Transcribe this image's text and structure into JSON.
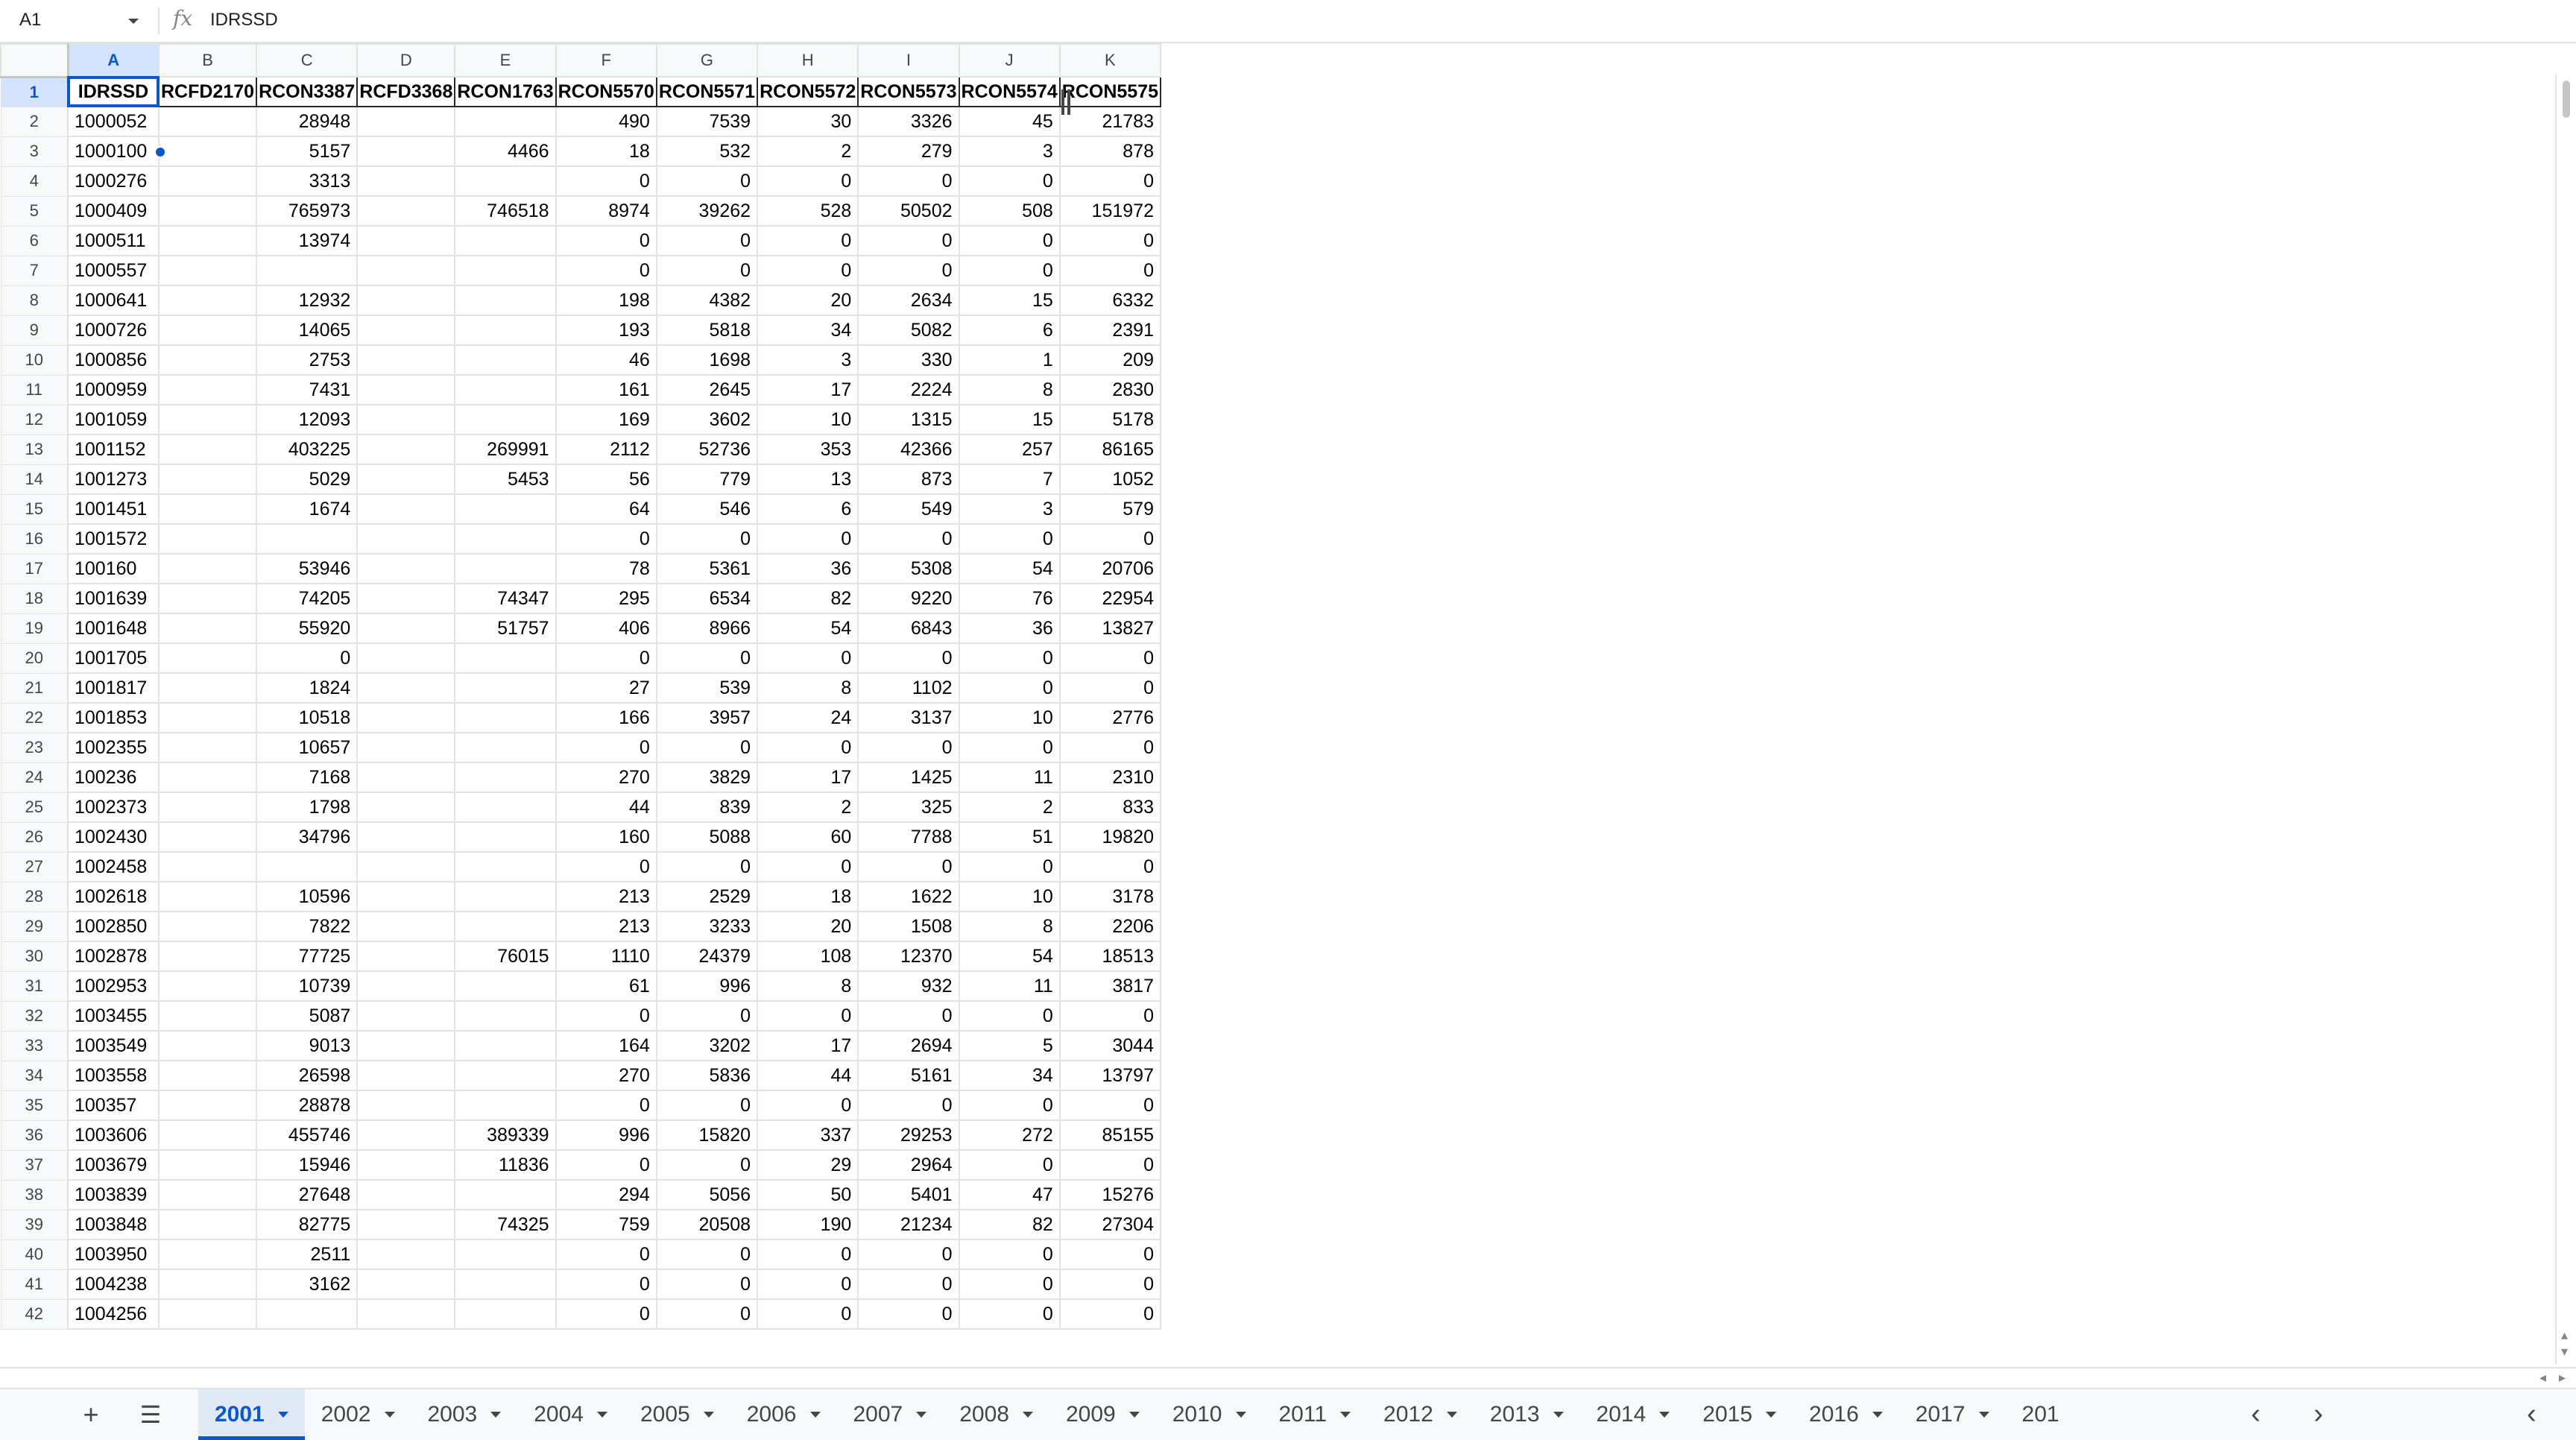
{
  "formula_bar": {
    "name_box": "A1",
    "fx_symbol": "fx",
    "formula_value": "IDRSSD"
  },
  "columns": [
    "A",
    "B",
    "C",
    "D",
    "E",
    "F",
    "G",
    "H",
    "I",
    "J",
    "K"
  ],
  "header_row": [
    "IDRSSD",
    "RCFD2170",
    "RCON3387",
    "RCFD3368",
    "RCON1763",
    "RCON5570",
    "RCON5571",
    "RCON5572",
    "RCON5573",
    "RCON5574",
    "RCON5575"
  ],
  "rows": [
    [
      "1000052",
      "",
      "28948",
      "",
      "",
      "490",
      "7539",
      "30",
      "3326",
      "45",
      "21783"
    ],
    [
      "1000100",
      "",
      "5157",
      "",
      "4466",
      "18",
      "532",
      "2",
      "279",
      "3",
      "878"
    ],
    [
      "1000276",
      "",
      "3313",
      "",
      "",
      "0",
      "0",
      "0",
      "0",
      "0",
      "0"
    ],
    [
      "1000409",
      "",
      "765973",
      "",
      "746518",
      "8974",
      "39262",
      "528",
      "50502",
      "508",
      "151972"
    ],
    [
      "1000511",
      "",
      "13974",
      "",
      "",
      "0",
      "0",
      "0",
      "0",
      "0",
      "0"
    ],
    [
      "1000557",
      "",
      "",
      "",
      "",
      "0",
      "0",
      "0",
      "0",
      "0",
      "0"
    ],
    [
      "1000641",
      "",
      "12932",
      "",
      "",
      "198",
      "4382",
      "20",
      "2634",
      "15",
      "6332"
    ],
    [
      "1000726",
      "",
      "14065",
      "",
      "",
      "193",
      "5818",
      "34",
      "5082",
      "6",
      "2391"
    ],
    [
      "1000856",
      "",
      "2753",
      "",
      "",
      "46",
      "1698",
      "3",
      "330",
      "1",
      "209"
    ],
    [
      "1000959",
      "",
      "7431",
      "",
      "",
      "161",
      "2645",
      "17",
      "2224",
      "8",
      "2830"
    ],
    [
      "1001059",
      "",
      "12093",
      "",
      "",
      "169",
      "3602",
      "10",
      "1315",
      "15",
      "5178"
    ],
    [
      "1001152",
      "",
      "403225",
      "",
      "269991",
      "2112",
      "52736",
      "353",
      "42366",
      "257",
      "86165"
    ],
    [
      "1001273",
      "",
      "5029",
      "",
      "5453",
      "56",
      "779",
      "13",
      "873",
      "7",
      "1052"
    ],
    [
      "1001451",
      "",
      "1674",
      "",
      "",
      "64",
      "546",
      "6",
      "549",
      "3",
      "579"
    ],
    [
      "1001572",
      "",
      "",
      "",
      "",
      "0",
      "0",
      "0",
      "0",
      "0",
      "0"
    ],
    [
      "100160",
      "",
      "53946",
      "",
      "",
      "78",
      "5361",
      "36",
      "5308",
      "54",
      "20706"
    ],
    [
      "1001639",
      "",
      "74205",
      "",
      "74347",
      "295",
      "6534",
      "82",
      "9220",
      "76",
      "22954"
    ],
    [
      "1001648",
      "",
      "55920",
      "",
      "51757",
      "406",
      "8966",
      "54",
      "6843",
      "36",
      "13827"
    ],
    [
      "1001705",
      "",
      "0",
      "",
      "",
      "0",
      "0",
      "0",
      "0",
      "0",
      "0"
    ],
    [
      "1001817",
      "",
      "1824",
      "",
      "",
      "27",
      "539",
      "8",
      "1102",
      "0",
      "0"
    ],
    [
      "1001853",
      "",
      "10518",
      "",
      "",
      "166",
      "3957",
      "24",
      "3137",
      "10",
      "2776"
    ],
    [
      "1002355",
      "",
      "10657",
      "",
      "",
      "0",
      "0",
      "0",
      "0",
      "0",
      "0"
    ],
    [
      "100236",
      "",
      "7168",
      "",
      "",
      "270",
      "3829",
      "17",
      "1425",
      "11",
      "2310"
    ],
    [
      "1002373",
      "",
      "1798",
      "",
      "",
      "44",
      "839",
      "2",
      "325",
      "2",
      "833"
    ],
    [
      "1002430",
      "",
      "34796",
      "",
      "",
      "160",
      "5088",
      "60",
      "7788",
      "51",
      "19820"
    ],
    [
      "1002458",
      "",
      "",
      "",
      "",
      "0",
      "0",
      "0",
      "0",
      "0",
      "0"
    ],
    [
      "1002618",
      "",
      "10596",
      "",
      "",
      "213",
      "2529",
      "18",
      "1622",
      "10",
      "3178"
    ],
    [
      "1002850",
      "",
      "7822",
      "",
      "",
      "213",
      "3233",
      "20",
      "1508",
      "8",
      "2206"
    ],
    [
      "1002878",
      "",
      "77725",
      "",
      "76015",
      "1110",
      "24379",
      "108",
      "12370",
      "54",
      "18513"
    ],
    [
      "1002953",
      "",
      "10739",
      "",
      "",
      "61",
      "996",
      "8",
      "932",
      "11",
      "3817"
    ],
    [
      "1003455",
      "",
      "5087",
      "",
      "",
      "0",
      "0",
      "0",
      "0",
      "0",
      "0"
    ],
    [
      "1003549",
      "",
      "9013",
      "",
      "",
      "164",
      "3202",
      "17",
      "2694",
      "5",
      "3044"
    ],
    [
      "1003558",
      "",
      "26598",
      "",
      "",
      "270",
      "5836",
      "44",
      "5161",
      "34",
      "13797"
    ],
    [
      "100357",
      "",
      "28878",
      "",
      "",
      "0",
      "0",
      "0",
      "0",
      "0",
      "0"
    ],
    [
      "1003606",
      "",
      "455746",
      "",
      "389339",
      "996",
      "15820",
      "337",
      "29253",
      "272",
      "85155"
    ],
    [
      "1003679",
      "",
      "15946",
      "",
      "11836",
      "0",
      "0",
      "29",
      "2964",
      "0",
      "0"
    ],
    [
      "1003839",
      "",
      "27648",
      "",
      "",
      "294",
      "5056",
      "50",
      "5401",
      "47",
      "15276"
    ],
    [
      "1003848",
      "",
      "82775",
      "",
      "74325",
      "759",
      "20508",
      "190",
      "21234",
      "82",
      "27304"
    ],
    [
      "1003950",
      "",
      "2511",
      "",
      "",
      "0",
      "0",
      "0",
      "0",
      "0",
      "0"
    ],
    [
      "1004238",
      "",
      "3162",
      "",
      "",
      "0",
      "0",
      "0",
      "0",
      "0",
      "0"
    ],
    [
      "1004256",
      "",
      "",
      "",
      "",
      "0",
      "0",
      "0",
      "0",
      "0",
      "0"
    ]
  ],
  "sheet_tabs": [
    "2001",
    "2002",
    "2003",
    "2004",
    "2005",
    "2006",
    "2007",
    "2008",
    "2009",
    "2010",
    "2011",
    "2012",
    "2013",
    "2014",
    "2015",
    "2016",
    "2017",
    "201"
  ],
  "active_sheet": "2001",
  "toolbar_icons": {
    "add_sheet": "+",
    "all_sheets": "☰",
    "nav_left": "‹",
    "nav_right": "›",
    "collapse": "‹"
  }
}
